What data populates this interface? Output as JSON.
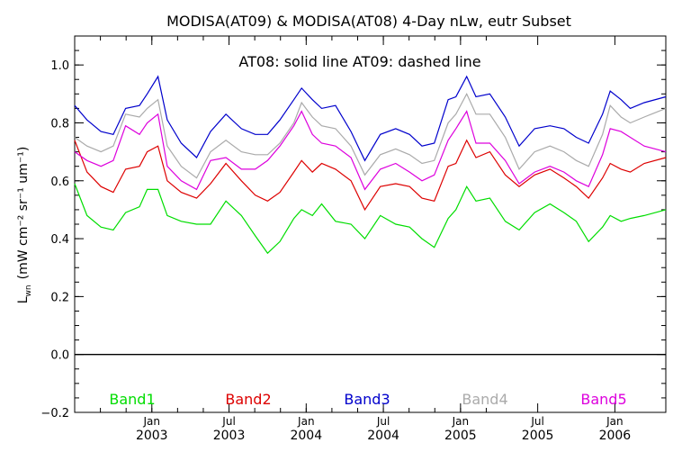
{
  "chart_data": {
    "type": "line",
    "title": "MODISA(AT09) & MODISA(AT08) 4-Day nLw, eutr Subset",
    "subtitle": "AT08: solid line   AT09: dashed line",
    "ylabel": "L",
    "ylabel_sub": "wn",
    "ylabel_units": "(mW cm⁻² sr⁻¹ um⁻¹)",
    "xlim": [
      2002.5,
      2006.33
    ],
    "ylim": [
      -0.2,
      1.1
    ],
    "yticks": [
      -0.2,
      0.0,
      0.2,
      0.4,
      0.6,
      0.8,
      1.0
    ],
    "ytick_labels": [
      "−0.2",
      "0.0",
      "0.2",
      "0.4",
      "0.6",
      "0.8",
      "1.0"
    ],
    "xticks": [
      {
        "x": 2003.0,
        "month": "Jan",
        "year": "2003"
      },
      {
        "x": 2003.5,
        "month": "Jul",
        "year": "2003"
      },
      {
        "x": 2004.0,
        "month": "Jan",
        "year": "2004"
      },
      {
        "x": 2004.5,
        "month": "Jul",
        "year": "2004"
      },
      {
        "x": 2005.0,
        "month": "Jan",
        "year": "2005"
      },
      {
        "x": 2005.5,
        "month": "Jul",
        "year": "2005"
      },
      {
        "x": 2006.0,
        "month": "Jan",
        "year": "2006"
      }
    ],
    "reference_line": 0.0,
    "x": [
      2002.5,
      2002.58,
      2002.67,
      2002.75,
      2002.83,
      2002.92,
      2002.97,
      2003.04,
      2003.1,
      2003.19,
      2003.29,
      2003.38,
      2003.48,
      2003.58,
      2003.67,
      2003.75,
      2003.83,
      2003.92,
      2003.97,
      2004.04,
      2004.1,
      2004.19,
      2004.29,
      2004.38,
      2004.48,
      2004.58,
      2004.67,
      2004.75,
      2004.83,
      2004.92,
      2004.97,
      2005.04,
      2005.1,
      2005.19,
      2005.29,
      2005.38,
      2005.48,
      2005.58,
      2005.67,
      2005.75,
      2005.83,
      2005.92,
      2005.97,
      2006.04,
      2006.1,
      2006.19,
      2006.33
    ],
    "series": [
      {
        "name": "Band1",
        "color": "#00dd00",
        "values": [
          0.59,
          0.48,
          0.44,
          0.43,
          0.49,
          0.51,
          0.57,
          0.57,
          0.48,
          0.46,
          0.45,
          0.45,
          0.53,
          0.48,
          0.41,
          0.35,
          0.39,
          0.47,
          0.5,
          0.48,
          0.52,
          0.46,
          0.45,
          0.4,
          0.48,
          0.45,
          0.44,
          0.4,
          0.37,
          0.47,
          0.5,
          0.58,
          0.53,
          0.54,
          0.46,
          0.43,
          0.49,
          0.52,
          0.49,
          0.46,
          0.39,
          0.44,
          0.48,
          0.46,
          0.47,
          0.48,
          0.5
        ]
      },
      {
        "name": "Band2",
        "color": "#dd0000",
        "values": [
          0.74,
          0.63,
          0.58,
          0.56,
          0.64,
          0.65,
          0.7,
          0.72,
          0.6,
          0.56,
          0.54,
          0.59,
          0.66,
          0.6,
          0.55,
          0.53,
          0.56,
          0.63,
          0.67,
          0.63,
          0.66,
          0.64,
          0.6,
          0.5,
          0.58,
          0.59,
          0.58,
          0.54,
          0.53,
          0.65,
          0.66,
          0.74,
          0.68,
          0.7,
          0.62,
          0.58,
          0.62,
          0.64,
          0.61,
          0.58,
          0.54,
          0.61,
          0.66,
          0.64,
          0.63,
          0.66,
          0.68
        ]
      },
      {
        "name": "Band3",
        "color": "#0000cc",
        "values": [
          0.86,
          0.81,
          0.77,
          0.76,
          0.85,
          0.86,
          0.9,
          0.96,
          0.81,
          0.73,
          0.68,
          0.77,
          0.83,
          0.78,
          0.76,
          0.76,
          0.81,
          0.88,
          0.92,
          0.88,
          0.85,
          0.86,
          0.77,
          0.67,
          0.76,
          0.78,
          0.76,
          0.72,
          0.73,
          0.88,
          0.89,
          0.96,
          0.89,
          0.9,
          0.82,
          0.72,
          0.78,
          0.79,
          0.78,
          0.75,
          0.73,
          0.83,
          0.91,
          0.88,
          0.85,
          0.87,
          0.89
        ]
      },
      {
        "name": "Band4",
        "color": "#aaaaaa",
        "values": [
          0.75,
          0.72,
          0.7,
          0.72,
          0.83,
          0.82,
          0.85,
          0.88,
          0.72,
          0.65,
          0.61,
          0.7,
          0.74,
          0.7,
          0.69,
          0.69,
          0.73,
          0.8,
          0.87,
          0.82,
          0.79,
          0.78,
          0.72,
          0.62,
          0.69,
          0.71,
          0.69,
          0.66,
          0.67,
          0.8,
          0.83,
          0.9,
          0.83,
          0.83,
          0.75,
          0.64,
          0.7,
          0.72,
          0.7,
          0.67,
          0.65,
          0.76,
          0.86,
          0.82,
          0.8,
          0.82,
          0.85
        ]
      },
      {
        "name": "Band5",
        "color": "#dd00dd",
        "values": [
          0.7,
          0.67,
          0.65,
          0.67,
          0.79,
          0.76,
          0.8,
          0.83,
          0.65,
          0.6,
          0.57,
          0.67,
          0.68,
          0.64,
          0.64,
          0.67,
          0.72,
          0.79,
          0.84,
          0.76,
          0.73,
          0.72,
          0.68,
          0.57,
          0.64,
          0.66,
          0.63,
          0.6,
          0.62,
          0.74,
          0.78,
          0.84,
          0.73,
          0.73,
          0.67,
          0.59,
          0.63,
          0.65,
          0.63,
          0.6,
          0.58,
          0.69,
          0.78,
          0.77,
          0.75,
          0.72,
          0.7
        ]
      }
    ],
    "legend": {
      "placement": "bottom-inside"
    }
  }
}
